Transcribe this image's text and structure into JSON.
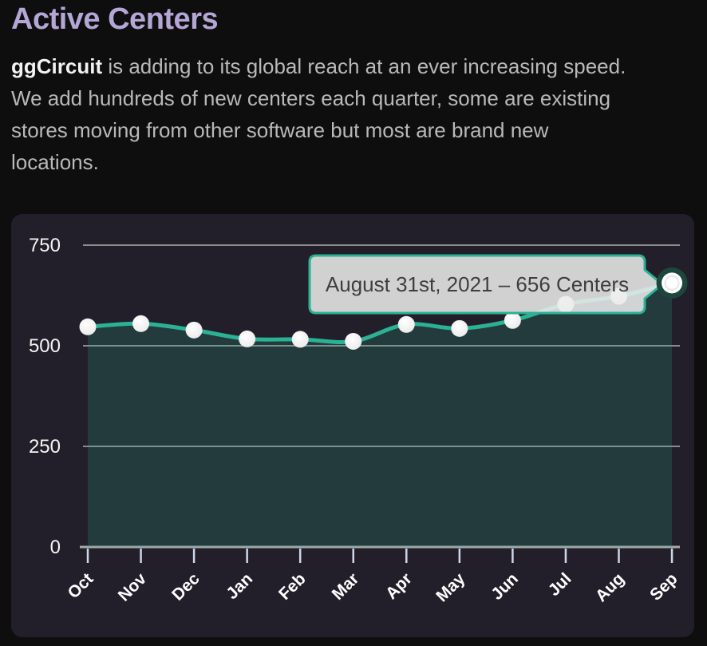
{
  "header": {
    "title": "Active Centers",
    "intro": {
      "brand": "ggCircuit",
      "line1_rest": " is adding to its global reach at an ever increasing speed.",
      "line2": "We add hundreds of new centers each quarter, some are existing",
      "line3": "stores moving from other software but most are brand new",
      "line4": "locations."
    }
  },
  "theme": {
    "page_bg": "#0e0e0f",
    "panel_bg": "#221f2a",
    "title_color": "#b4a7d6",
    "body_text": "#b9b9b9",
    "brand_text": "#f2f2f2",
    "axis_label": "#f4f4f4",
    "month_label": "#ffffff",
    "grid_line": "#8b8b8b",
    "baseline": "#a9abab",
    "tick_color": "#ccd7eb",
    "line_color": "#2bb193",
    "point_fill": "#ffffff",
    "active_halo": "#1d463d",
    "tooltip_bg": "rgba(236,236,236,0.87)",
    "tooltip_border": "#2bb193",
    "tooltip_text_color": "#3e3e3e"
  },
  "chart_data": {
    "type": "area",
    "title": "",
    "series_name": "Active Centers",
    "x_categories": [
      "Oct",
      "Nov",
      "Dec",
      "Jan",
      "Feb",
      "Mar",
      "Apr",
      "May",
      "Jun",
      "Jul",
      "Aug",
      "Sep"
    ],
    "values": [
      547,
      555,
      539,
      517,
      516,
      511,
      553,
      543,
      563,
      603,
      623,
      656
    ],
    "y_ticks": [
      0,
      250,
      500,
      750
    ],
    "ylim": [
      0,
      820
    ],
    "grid": true,
    "legend": "none",
    "fill_opacity": 0.2,
    "tooltip": {
      "text": "August 31st, 2021 – 656 Centers",
      "active_category": "Sep",
      "active_value": 656
    }
  }
}
